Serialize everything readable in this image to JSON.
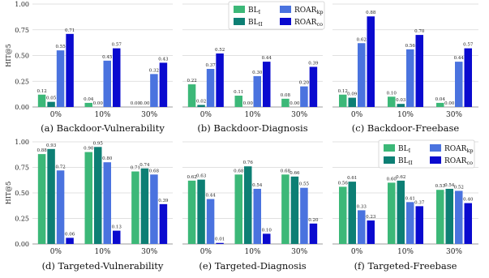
{
  "colors": {
    "BL_I": "#3cb878",
    "BL_II": "#0d7f74",
    "ROAR_kp": "#4a73df",
    "ROAR_co": "#0a0acf",
    "grid": "#d6d6d6"
  },
  "legend": [
    {
      "key": "BL_I",
      "base": "BL",
      "sub": "I"
    },
    {
      "key": "BL_II",
      "base": "BL",
      "sub": "II"
    },
    {
      "key": "ROAR_kp",
      "base": "ROAR",
      "sub": "kp"
    },
    {
      "key": "ROAR_co",
      "base": "ROAR",
      "sub": "co"
    }
  ],
  "chart_data": [
    {
      "type": "bar",
      "caption": "(a) Backdoor-Vulnerability",
      "ylabel": "HIT@5",
      "ylim": [
        0,
        1
      ],
      "yticks": [
        "0.00",
        "0.25",
        "0.50",
        "0.75",
        "1.00"
      ],
      "categories": [
        "0%",
        "10%",
        "30%"
      ],
      "grid": true,
      "series": [
        {
          "key": "BL_I",
          "values": [
            0.12,
            0.04,
            0.0
          ],
          "labels": [
            "0.12",
            "0.04",
            "0.00"
          ]
        },
        {
          "key": "BL_II",
          "values": [
            0.05,
            0.0,
            0.0
          ],
          "labels": [
            "0.05",
            "0.00",
            "0.00"
          ]
        },
        {
          "key": "ROAR_kp",
          "values": [
            0.55,
            0.45,
            0.32
          ],
          "labels": [
            "0.55",
            "0.45",
            "0.32"
          ]
        },
        {
          "key": "ROAR_co",
          "values": [
            0.71,
            0.57,
            0.43
          ],
          "labels": [
            "0.71",
            "0.57",
            "0.43"
          ]
        }
      ]
    },
    {
      "type": "bar",
      "caption": "(b) Backdoor-Diagnosis",
      "ylabel": "",
      "ylim": [
        0,
        1
      ],
      "yticks": [],
      "categories": [
        "0%",
        "10%",
        "30%"
      ],
      "grid": true,
      "series": [
        {
          "key": "BL_I",
          "values": [
            0.22,
            0.11,
            0.08
          ],
          "labels": [
            "0.22",
            "0.11",
            "0.08"
          ]
        },
        {
          "key": "BL_II",
          "values": [
            0.02,
            0.0,
            0.0
          ],
          "labels": [
            "0.02",
            "0.00",
            "0.00"
          ]
        },
        {
          "key": "ROAR_kp",
          "values": [
            0.37,
            0.3,
            0.2
          ],
          "labels": [
            "0.37",
            "0.30",
            "0.20"
          ]
        },
        {
          "key": "ROAR_co",
          "values": [
            0.52,
            0.44,
            0.39
          ],
          "labels": [
            "0.52",
            "0.44",
            "0.39"
          ]
        }
      ]
    },
    {
      "type": "bar",
      "caption": "(c) Backdoor-Freebase",
      "ylabel": "",
      "ylim": [
        0,
        1
      ],
      "yticks": [],
      "categories": [
        "0%",
        "10%",
        "30%"
      ],
      "grid": true,
      "series": [
        {
          "key": "BL_I",
          "values": [
            0.12,
            0.1,
            0.04
          ],
          "labels": [
            "0.12",
            "0.10",
            "0.04"
          ]
        },
        {
          "key": "BL_II",
          "values": [
            0.09,
            0.03,
            0.0
          ],
          "labels": [
            "0.09",
            "0.03",
            "0.00"
          ]
        },
        {
          "key": "ROAR_kp",
          "values": [
            0.62,
            0.56,
            0.44
          ],
          "labels": [
            "0.62",
            "0.56",
            "0.44"
          ]
        },
        {
          "key": "ROAR_co",
          "values": [
            0.88,
            0.7,
            0.57
          ],
          "labels": [
            "0.88",
            "0.70",
            "0.57"
          ]
        }
      ]
    },
    {
      "type": "bar",
      "caption": "(d) Targeted-Vulnerability",
      "ylabel": "HIT@5",
      "ylim": [
        0,
        1
      ],
      "yticks": [
        "0.00",
        "0.25",
        "0.50",
        "0.75",
        "1.00"
      ],
      "categories": [
        "0%",
        "10%",
        "30%"
      ],
      "grid": true,
      "series": [
        {
          "key": "BL_I",
          "values": [
            0.88,
            0.9,
            0.71
          ],
          "labels": [
            "0.88",
            "0.90",
            "0.71"
          ]
        },
        {
          "key": "BL_II",
          "values": [
            0.93,
            0.95,
            0.74
          ],
          "labels": [
            "0.93",
            "0.95",
            "0.74"
          ]
        },
        {
          "key": "ROAR_kp",
          "values": [
            0.72,
            0.8,
            0.68
          ],
          "labels": [
            "0.72",
            "0.80",
            "0.68"
          ]
        },
        {
          "key": "ROAR_co",
          "values": [
            0.06,
            0.13,
            0.39
          ],
          "labels": [
            "0.06",
            "0.13",
            "0.39"
          ]
        }
      ]
    },
    {
      "type": "bar",
      "caption": "(e) Targeted-Diagnosis",
      "ylabel": "",
      "ylim": [
        0,
        1
      ],
      "yticks": [],
      "categories": [
        "0%",
        "10%",
        "30%"
      ],
      "grid": true,
      "series": [
        {
          "key": "BL_I",
          "values": [
            0.62,
            0.68,
            0.68
          ],
          "labels": [
            "0.62",
            "0.68",
            "0.68"
          ]
        },
        {
          "key": "BL_II",
          "values": [
            0.63,
            0.76,
            0.66
          ],
          "labels": [
            "0.63",
            "0.76",
            "0.66"
          ]
        },
        {
          "key": "ROAR_kp",
          "values": [
            0.44,
            0.54,
            0.55
          ],
          "labels": [
            "0.44",
            "0.54",
            "0.55"
          ]
        },
        {
          "key": "ROAR_co",
          "values": [
            0.01,
            0.1,
            0.2
          ],
          "labels": [
            "0.01",
            "0.10",
            "0.20"
          ]
        }
      ]
    },
    {
      "type": "bar",
      "caption": "(f) Targeted-Freebase",
      "ylabel": "",
      "ylim": [
        0,
        1
      ],
      "yticks": [],
      "categories": [
        "0%",
        "10%",
        "30%"
      ],
      "grid": true,
      "series": [
        {
          "key": "BL_I",
          "values": [
            0.56,
            0.6,
            0.53
          ],
          "labels": [
            "0.56",
            "0.60",
            "0.53"
          ]
        },
        {
          "key": "BL_II",
          "values": [
            0.61,
            0.62,
            0.54
          ],
          "labels": [
            "0.61",
            "0.62",
            "0.54"
          ]
        },
        {
          "key": "ROAR_kp",
          "values": [
            0.33,
            0.41,
            0.52
          ],
          "labels": [
            "0.33",
            "0.41",
            "0.52"
          ]
        },
        {
          "key": "ROAR_co",
          "values": [
            0.23,
            0.37,
            0.4
          ],
          "labels": [
            "0.23",
            "0.37",
            "0.40"
          ]
        }
      ]
    }
  ]
}
